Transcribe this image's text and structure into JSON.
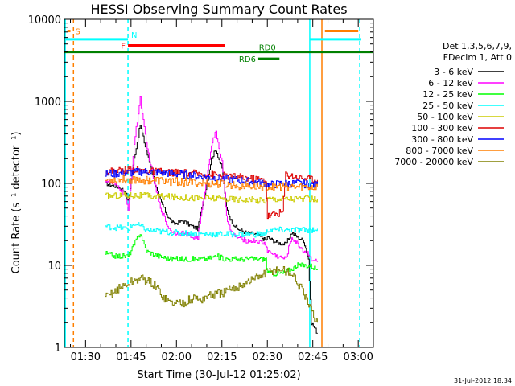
{
  "chart_data": {
    "type": "line",
    "title": "HESSI Observing Summary Count Rates",
    "xlabel": "Start Time (30-Jul-12 01:25:02)",
    "ylabel": "Count Rate (s⁻¹ detector⁻¹)",
    "footer": "31-Jul-2012 18:34",
    "y_scale": "log",
    "xlim_minutes": [
      83,
      185
    ],
    "ylim": [
      1,
      10000
    ],
    "x_ticks": [
      {
        "t": 90,
        "label": "01:30"
      },
      {
        "t": 105,
        "label": "01:45"
      },
      {
        "t": 120,
        "label": "02:00"
      },
      {
        "t": 135,
        "label": "02:15"
      },
      {
        "t": 150,
        "label": "02:30"
      },
      {
        "t": 165,
        "label": "02:45"
      },
      {
        "t": 180,
        "label": "03:00"
      }
    ],
    "y_ticks": [
      {
        "v": 1,
        "label": "1"
      },
      {
        "v": 10,
        "label": "10"
      },
      {
        "v": 100,
        "label": "100"
      },
      {
        "v": 1000,
        "label": "1000"
      },
      {
        "v": 10000,
        "label": "10000"
      }
    ],
    "legend": {
      "placement": "right",
      "header": [
        "Det 1,3,5,6,7,9,",
        "FDecim 1, Att 0"
      ]
    },
    "series": [
      {
        "name": "3 - 6 keV",
        "color": "#000000",
        "x": [
          96.5,
          101,
          103,
          104,
          106,
          108,
          110,
          114,
          117,
          119,
          122,
          125,
          127,
          130,
          131.5,
          133,
          135,
          136.5,
          138,
          140,
          143,
          146,
          148,
          149.5,
          150,
          153,
          156,
          158,
          160,
          162,
          163.5,
          164.5,
          166.5
        ],
        "y": [
          100,
          90,
          80,
          60,
          200,
          520,
          250,
          70,
          40,
          32,
          35,
          30,
          28,
          100,
          200,
          260,
          150,
          50,
          35,
          28,
          25,
          24,
          22,
          20,
          22,
          19,
          18,
          25,
          22,
          20,
          12,
          2,
          1.5
        ]
      },
      {
        "name": "6 - 12 keV",
        "color": "#ff00ff",
        "x": [
          96.5,
          101,
          103,
          104,
          106,
          108,
          110,
          114,
          117,
          119,
          122,
          125,
          127,
          130,
          131.5,
          133,
          135,
          136.5,
          138,
          140,
          143,
          146,
          148,
          149.5,
          150,
          153,
          156,
          158,
          160,
          162,
          163.5,
          164.5,
          166.5
        ],
        "y": [
          110,
          90,
          70,
          45,
          300,
          1100,
          300,
          60,
          30,
          25,
          25,
          22,
          22,
          120,
          300,
          420,
          180,
          40,
          25,
          22,
          20,
          20,
          19,
          18,
          15,
          13,
          12,
          22,
          18,
          15,
          14,
          12,
          11
        ]
      },
      {
        "name": "12 - 25 keV",
        "color": "#00ff00",
        "x": [
          96.5,
          100,
          104,
          106,
          108,
          110,
          114,
          118,
          122,
          126,
          130,
          133,
          136,
          140,
          145,
          148,
          149.5,
          150,
          155,
          160,
          164,
          166.5
        ],
        "y": [
          14,
          13,
          13,
          18,
          25,
          15,
          13,
          12,
          12,
          12,
          12,
          13,
          12,
          12,
          12,
          12,
          12,
          8,
          8,
          10,
          10,
          9
        ]
      },
      {
        "name": "25 - 50 keV",
        "color": "#00ffff",
        "x": [
          96.5,
          100,
          104,
          106,
          108,
          110,
          114,
          120,
          130,
          140,
          149.5,
          150,
          155,
          160,
          164,
          166.5
        ],
        "y": [
          30,
          29,
          28,
          32,
          30,
          27,
          26,
          25,
          24,
          24,
          24,
          27,
          27,
          27,
          27,
          28
        ]
      },
      {
        "name": "50 - 100 keV",
        "color": "#cccc00",
        "x": [
          96.5,
          105,
          110,
          120,
          130,
          140,
          149.5,
          150,
          160,
          166.5
        ],
        "y": [
          70,
          72,
          70,
          68,
          66,
          64,
          62,
          65,
          65,
          64
        ]
      },
      {
        "name": "100 - 300 keV",
        "color": "#dd0000",
        "x": [
          96.5,
          103,
          105,
          108,
          112,
          120,
          130,
          140,
          149.5,
          150,
          155,
          156,
          160,
          166.5
        ],
        "y": [
          140,
          145,
          150,
          145,
          140,
          135,
          130,
          120,
          110,
          40,
          45,
          130,
          120,
          110
        ]
      },
      {
        "name": "300 - 800 keV",
        "color": "#0000ff",
        "x": [
          96.5,
          105,
          110,
          115,
          120,
          130,
          140,
          149.5,
          150,
          155,
          160,
          166.5
        ],
        "y": [
          130,
          135,
          140,
          135,
          130,
          120,
          110,
          100,
          95,
          100,
          100,
          95
        ]
      },
      {
        "name": "800 - 7000 keV",
        "color": "#ff7f00",
        "x": [
          96.5,
          105,
          110,
          120,
          130,
          140,
          149.5,
          150,
          155,
          160,
          166.5
        ],
        "y": [
          110,
          112,
          110,
          105,
          100,
          95,
          90,
          90,
          92,
          90,
          90
        ]
      },
      {
        "name": "7000 - 20000 keV",
        "color": "#808000",
        "x": [
          96.5,
          100,
          104,
          108,
          112,
          114,
          116,
          118,
          122,
          126,
          128,
          130,
          134,
          138,
          142,
          146,
          149.5,
          150,
          154,
          158,
          160,
          162,
          164,
          166.5
        ],
        "y": [
          4,
          5,
          6,
          7,
          6,
          5,
          4,
          3.5,
          3.5,
          4,
          3.8,
          4.2,
          4.5,
          5,
          6,
          7,
          8,
          8.5,
          9,
          8,
          6,
          4.5,
          3,
          2
        ]
      }
    ],
    "flags": [
      {
        "label": "S",
        "color": "#ff7f00",
        "intervals": [
          [
            84,
            85
          ]
        ],
        "y": 7200
      },
      {
        "label": "N",
        "color": "#00ffff",
        "intervals": [
          [
            83,
            104
          ],
          [
            164,
            181
          ]
        ],
        "y": 5700
      },
      {
        "label": "F",
        "color": "#ff0000",
        "intervals": [
          [
            104,
            136
          ]
        ],
        "y": 4800
      },
      {
        "label": "RD0",
        "color": "#008000",
        "intervals": [
          [
            83,
            185
          ]
        ],
        "y": 4000
      },
      {
        "label": "RD6",
        "color": "#008000",
        "intervals": [
          [
            147,
            154
          ]
        ],
        "y": 3300
      },
      {
        "label": "",
        "color": "#ff7f00",
        "intervals": [
          [
            169,
            180
          ]
        ],
        "y": 7200
      }
    ],
    "vlines": [
      {
        "t": 83.3,
        "color": "#00ffff",
        "dashed": false
      },
      {
        "t": 86,
        "color": "#ff7f00",
        "dashed": true
      },
      {
        "t": 104,
        "color": "#00ffff",
        "dashed": true
      },
      {
        "t": 164,
        "color": "#00ffff",
        "dashed": false
      },
      {
        "t": 168,
        "color": "#ff7f00",
        "dashed": false
      },
      {
        "t": 180.5,
        "color": "#00ffff",
        "dashed": true
      }
    ]
  }
}
